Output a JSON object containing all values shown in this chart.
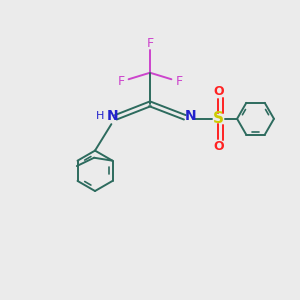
{
  "bg_color": "#ebebeb",
  "bond_color": "#2d6b5e",
  "N_color": "#2222cc",
  "F_color": "#cc44cc",
  "S_color": "#cccc00",
  "O_color": "#ff2222",
  "line_width": 1.4,
  "figsize": [
    3.0,
    3.0
  ],
  "dpi": 100,
  "xlim": [
    0,
    10
  ],
  "ylim": [
    0,
    10
  ]
}
